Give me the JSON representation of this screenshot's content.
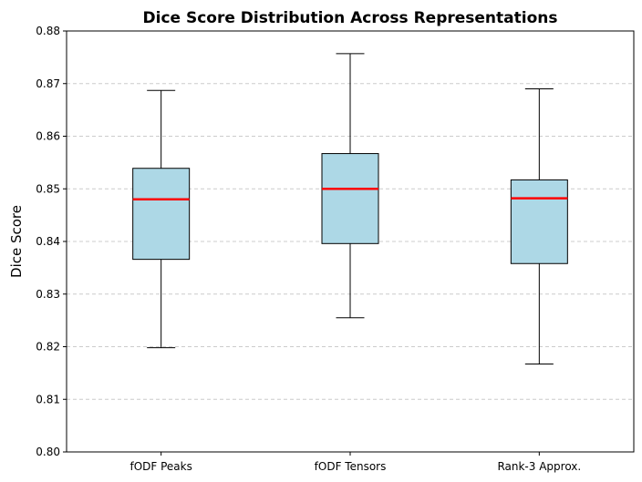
{
  "chart_data": {
    "type": "box",
    "title": "Dice Score Distribution Across Representations",
    "xlabel": "",
    "ylabel": "Dice Score",
    "ylim": [
      0.8,
      0.88
    ],
    "yticks": [
      "0.80",
      "0.81",
      "0.82",
      "0.83",
      "0.84",
      "0.85",
      "0.86",
      "0.87",
      "0.88"
    ],
    "grid": "y-dashed",
    "colors": {
      "box_fill": "#add8e6",
      "median": "#ff0000",
      "grid": "#cccccc"
    },
    "categories": [
      "fODF Peaks",
      "fODF Tensors",
      "Rank-3 Approx."
    ],
    "boxes": [
      {
        "whisker_low": 0.8198,
        "q1": 0.8366,
        "median": 0.848,
        "q3": 0.8539,
        "whisker_high": 0.8687
      },
      {
        "whisker_low": 0.8255,
        "q1": 0.8396,
        "median": 0.85,
        "q3": 0.8567,
        "whisker_high": 0.8757
      },
      {
        "whisker_low": 0.8167,
        "q1": 0.8358,
        "median": 0.8482,
        "q3": 0.8517,
        "whisker_high": 0.869
      }
    ]
  }
}
